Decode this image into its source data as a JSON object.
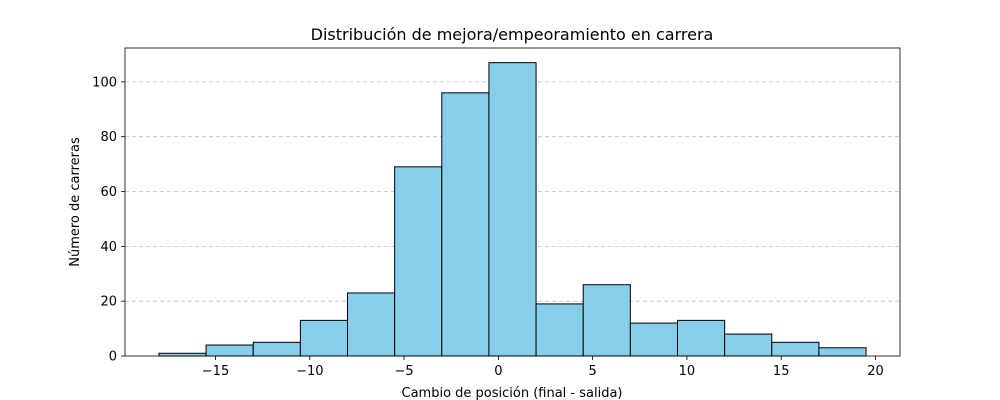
{
  "chart_data": {
    "type": "bar",
    "title": "Distribución de mejora/empeoramiento en carrera",
    "xlabel": "Cambio de posición (final - salida)",
    "ylabel": "Número de carreras",
    "bins": [
      {
        "x0": -18.0,
        "x1": -15.5,
        "count": 1
      },
      {
        "x0": -15.5,
        "x1": -13.0,
        "count": 4
      },
      {
        "x0": -13.0,
        "x1": -10.5,
        "count": 5
      },
      {
        "x0": -10.5,
        "x1": -8.0,
        "count": 13
      },
      {
        "x0": -8.0,
        "x1": -5.5,
        "count": 23
      },
      {
        "x0": -5.5,
        "x1": -3.0,
        "count": 69
      },
      {
        "x0": -3.0,
        "x1": -0.5,
        "count": 96
      },
      {
        "x0": -0.5,
        "x1": 2.0,
        "count": 107
      },
      {
        "x0": 2.0,
        "x1": 4.5,
        "count": 19
      },
      {
        "x0": 4.5,
        "x1": 7.0,
        "count": 26
      },
      {
        "x0": 7.0,
        "x1": 9.5,
        "count": 12
      },
      {
        "x0": 9.5,
        "x1": 12.0,
        "count": 13
      },
      {
        "x0": 12.0,
        "x1": 14.5,
        "count": 8
      },
      {
        "x0": 14.5,
        "x1": 17.0,
        "count": 5
      },
      {
        "x0": 17.0,
        "x1": 19.5,
        "count": 3
      }
    ],
    "xlim": [
      -19.8,
      21.3
    ],
    "ylim": [
      0,
      112.35
    ],
    "xticks": [
      -15,
      -10,
      -5,
      0,
      5,
      10,
      15,
      20
    ],
    "yticks": [
      0,
      20,
      40,
      60,
      80,
      100
    ],
    "grid": "y-dashed",
    "bar_color": "#87ceeb",
    "edge_color": "#000000"
  }
}
